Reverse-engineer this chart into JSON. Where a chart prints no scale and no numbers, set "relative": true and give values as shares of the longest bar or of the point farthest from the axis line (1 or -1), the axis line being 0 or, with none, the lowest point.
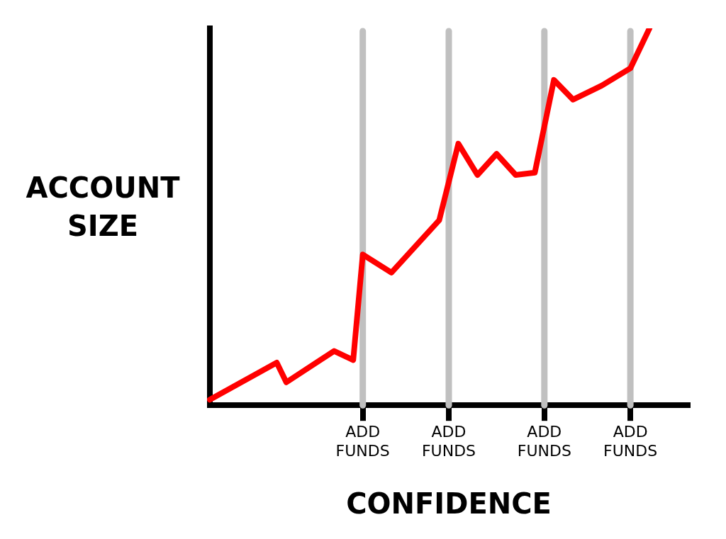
{
  "chart_data": {
    "type": "line",
    "relative": true,
    "xlabel": "CONFIDENCE",
    "ylabel": "ACCOUNT SIZE",
    "categories": [
      null,
      null,
      null,
      null,
      null,
      null,
      null,
      null,
      null,
      null,
      null,
      null,
      null,
      null,
      null,
      null,
      "ADD FUNDS",
      null,
      null,
      null,
      null,
      null,
      null,
      null,
      null,
      "ADD FUNDS",
      null,
      null,
      null,
      null,
      null,
      null,
      null,
      null,
      null,
      "ADD FUNDS",
      null,
      null,
      null,
      null,
      null,
      null,
      null,
      null,
      "ADD FUNDS",
      null,
      null,
      null,
      null,
      null,
      null
    ],
    "series": [
      {
        "color": "#ff0000",
        "values": [
          0.015,
          null,
          null,
          null,
          null,
          null,
          null,
          0.113,
          0.061,
          null,
          null,
          null,
          null,
          0.144,
          null,
          0.12,
          0.4,
          null,
          null,
          0.352,
          null,
          null,
          null,
          null,
          0.491,
          null,
          0.694,
          null,
          0.611,
          null,
          0.667,
          null,
          0.611,
          null,
          0.617,
          null,
          0.863,
          null,
          0.811,
          null,
          null,
          0.848,
          null,
          null,
          0.894,
          null,
          1,
          null,
          null,
          null,
          null
        ]
      }
    ],
    "grid": "x",
    "legend": false,
    "marker": "none",
    "line_style": "solid"
  }
}
